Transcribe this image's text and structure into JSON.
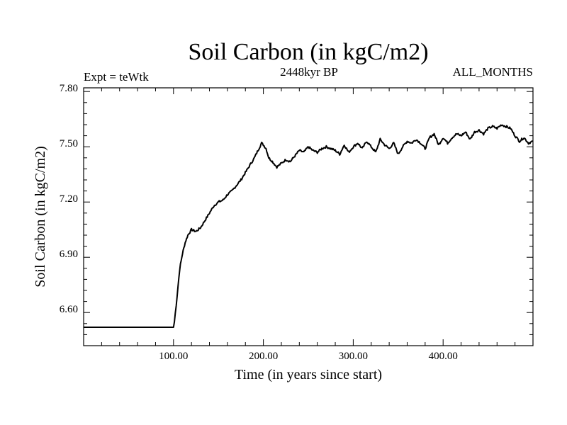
{
  "chart_data": {
    "type": "line",
    "title": "Soil Carbon (in kgC/m2)",
    "subtitle": "2448kyr BP",
    "left_label": "Expt = teWtk",
    "right_label": "ALL_MONTHS",
    "xlabel": "Time (in years since start)",
    "ylabel": "Soil Carbon (in kgC/m2)",
    "xlim": [
      0,
      500
    ],
    "ylim": [
      6.4,
      7.8
    ],
    "x_ticks": [
      100,
      200,
      300,
      400
    ],
    "x_tick_labels": [
      "100.00",
      "200.00",
      "300.00",
      "400.00"
    ],
    "y_ticks": [
      6.6,
      6.9,
      7.2,
      7.5,
      7.8
    ],
    "y_tick_labels": [
      "6.60",
      "6.90",
      "7.20",
      "7.50",
      "7.80"
    ],
    "series": [
      {
        "name": "Soil Carbon",
        "x": [
          0,
          50,
          100,
          101,
          103,
          105,
          107,
          110,
          113,
          116,
          120,
          125,
          130,
          135,
          140,
          145,
          150,
          155,
          160,
          165,
          170,
          175,
          180,
          185,
          190,
          195,
          198,
          200,
          203,
          206,
          210,
          215,
          220,
          225,
          230,
          235,
          240,
          245,
          250,
          255,
          260,
          265,
          270,
          275,
          280,
          285,
          290,
          295,
          300,
          305,
          310,
          315,
          320,
          325,
          330,
          335,
          340,
          345,
          350,
          355,
          360,
          365,
          370,
          375,
          380,
          385,
          390,
          395,
          400,
          405,
          410,
          415,
          420,
          425,
          430,
          435,
          440,
          445,
          450,
          455,
          460,
          465,
          470,
          475,
          480,
          485,
          490,
          495,
          500
        ],
        "values": [
          6.5,
          6.5,
          6.5,
          6.53,
          6.62,
          6.72,
          6.82,
          6.9,
          6.96,
          7.0,
          7.03,
          7.02,
          7.04,
          7.08,
          7.12,
          7.16,
          7.18,
          7.19,
          7.22,
          7.24,
          7.27,
          7.3,
          7.34,
          7.38,
          7.42,
          7.47,
          7.5,
          7.49,
          7.47,
          7.42,
          7.4,
          7.37,
          7.39,
          7.41,
          7.4,
          7.43,
          7.46,
          7.45,
          7.48,
          7.46,
          7.45,
          7.47,
          7.48,
          7.47,
          7.46,
          7.44,
          7.49,
          7.45,
          7.48,
          7.5,
          7.47,
          7.51,
          7.48,
          7.45,
          7.52,
          7.49,
          7.47,
          7.5,
          7.44,
          7.48,
          7.51,
          7.5,
          7.52,
          7.5,
          7.47,
          7.53,
          7.55,
          7.49,
          7.53,
          7.5,
          7.53,
          7.55,
          7.54,
          7.56,
          7.52,
          7.56,
          7.57,
          7.55,
          7.58,
          7.59,
          7.58,
          7.6,
          7.59,
          7.58,
          7.54,
          7.51,
          7.53,
          7.5,
          7.51
        ]
      }
    ]
  }
}
